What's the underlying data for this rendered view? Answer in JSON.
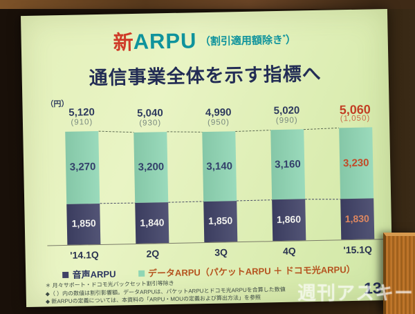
{
  "photo": {
    "watermark": "週刊アスキー",
    "page_number": "13"
  },
  "slide": {
    "title": {
      "prefix": "新",
      "main": "ARPU",
      "note_open": "（割引適用額除き",
      "note_sup": "*",
      "note_close": "）"
    },
    "subtitle": "通信事業全体を示す指標へ",
    "legend": {
      "items": [
        {
          "label": "音声ARPU",
          "swatch_color": "#3f4166",
          "text_color": "#2b3560"
        },
        {
          "label": "データARPU（パケットARPU ＋ ドコモ光ARPU）",
          "swatch_color": "#8fd6b4",
          "text_color": "#b5531f"
        }
      ]
    },
    "footnotes": [
      "＊ 月々サポート・ドコモ光パックセット割引等除き",
      "◆（ ）内の数値は割引影響額。データARPUは、パケットARPUとドコモ光ARPUを合算した数値",
      "◆ 新ARPUの定義については、本資料の「ARPU・MOUの定義および算出方法」を参照"
    ]
  },
  "chart_data": {
    "type": "stacked-bar",
    "title": "新ARPU（割引適用額除き）",
    "unit_label": "（円）",
    "categories": [
      "'14.1Q",
      "2Q",
      "3Q",
      "4Q",
      "'15.1Q"
    ],
    "series": [
      {
        "name": "音声ARPU",
        "values": [
          1850,
          1840,
          1850,
          1860,
          1830
        ],
        "color": "#3f4166",
        "value_labels": [
          "1,850",
          "1,840",
          "1,850",
          "1,860",
          "1,830"
        ]
      },
      {
        "name": "データARPU（パケットARPU ＋ ドコモ光ARPU）",
        "values": [
          3270,
          3200,
          3140,
          3160,
          3230
        ],
        "color": "#8fd6b4",
        "value_labels": [
          "3,270",
          "3,200",
          "3,140",
          "3,160",
          "3,230"
        ]
      }
    ],
    "totals": {
      "values": [
        5120,
        5040,
        4990,
        5020,
        5060
      ],
      "labels": [
        "5,120",
        "5,040",
        "4,990",
        "5,020",
        "5,060"
      ]
    },
    "discounts": {
      "values": [
        910,
        930,
        950,
        990,
        1050
      ],
      "labels": [
        "(910)",
        "(930)",
        "(950)",
        "(990)",
        "(1,050)"
      ]
    },
    "highlight_index": 4,
    "highlight_color": "#c23f24",
    "ylim": [
      0,
      5500
    ],
    "grid": false,
    "legend_position": "bottom",
    "connector_style": "dashed"
  },
  "colors": {
    "title_accent_red": "#cf3b28",
    "title_teal": "#0f939c",
    "subtitle_navy": "#232d55",
    "slide_background": "#e3f0ba",
    "voice_bar": "#3f4166",
    "data_bar": "#8fd6b4",
    "highlight_red": "#c23f24"
  }
}
